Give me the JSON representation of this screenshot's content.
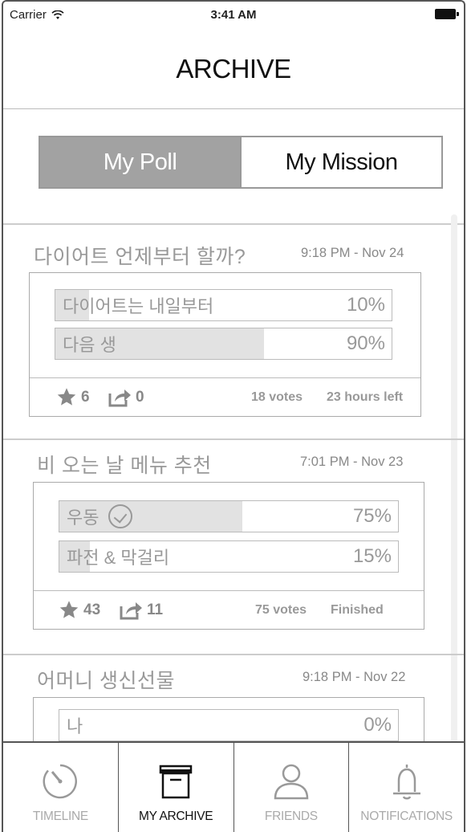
{
  "status_bar": {
    "carrier": "Carrier",
    "time": "3:41 AM"
  },
  "header": {
    "title": "ARCHIVE"
  },
  "segment": {
    "options": [
      "My Poll",
      "My Mission"
    ],
    "selected": "My Poll"
  },
  "polls": [
    {
      "question": "다이어트 언제부터 할까?",
      "date": "9:18 PM - Nov 24",
      "options": [
        {
          "label": "다이어트는 내일부터",
          "percent_text": "10%",
          "percent": 10,
          "checked": false
        },
        {
          "label": "다음 생",
          "percent_text": "90%",
          "percent": 90,
          "checked": false
        }
      ],
      "stars": "6",
      "shares": "0",
      "votes": "18 votes",
      "status": "23 hours left"
    },
    {
      "question": "비 오는 날 메뉴 추천",
      "date": "7:01 PM - Nov 23",
      "options": [
        {
          "label": "우동",
          "percent_text": "75%",
          "percent": 75,
          "checked": true
        },
        {
          "label": "파전 & 막걸리",
          "percent_text": "15%",
          "percent": 15,
          "checked": false
        }
      ],
      "stars": "43",
      "shares": "11",
      "votes": "75 votes",
      "status": "Finished"
    },
    {
      "question": "어머니 생신선물",
      "date": "9:18 PM - Nov 22",
      "options": [
        {
          "label": "나",
          "percent_text": "0%",
          "percent": 0,
          "checked": false
        }
      ]
    }
  ],
  "tabbar": {
    "items": [
      {
        "label": "TIMELINE",
        "icon": "timeline-icon"
      },
      {
        "label": "MY ARCHIVE",
        "icon": "archive-icon",
        "active": true
      },
      {
        "label": "FRIENDS",
        "icon": "friends-icon"
      },
      {
        "label": "NOTIFICATIONS",
        "icon": "bell-icon"
      }
    ]
  }
}
